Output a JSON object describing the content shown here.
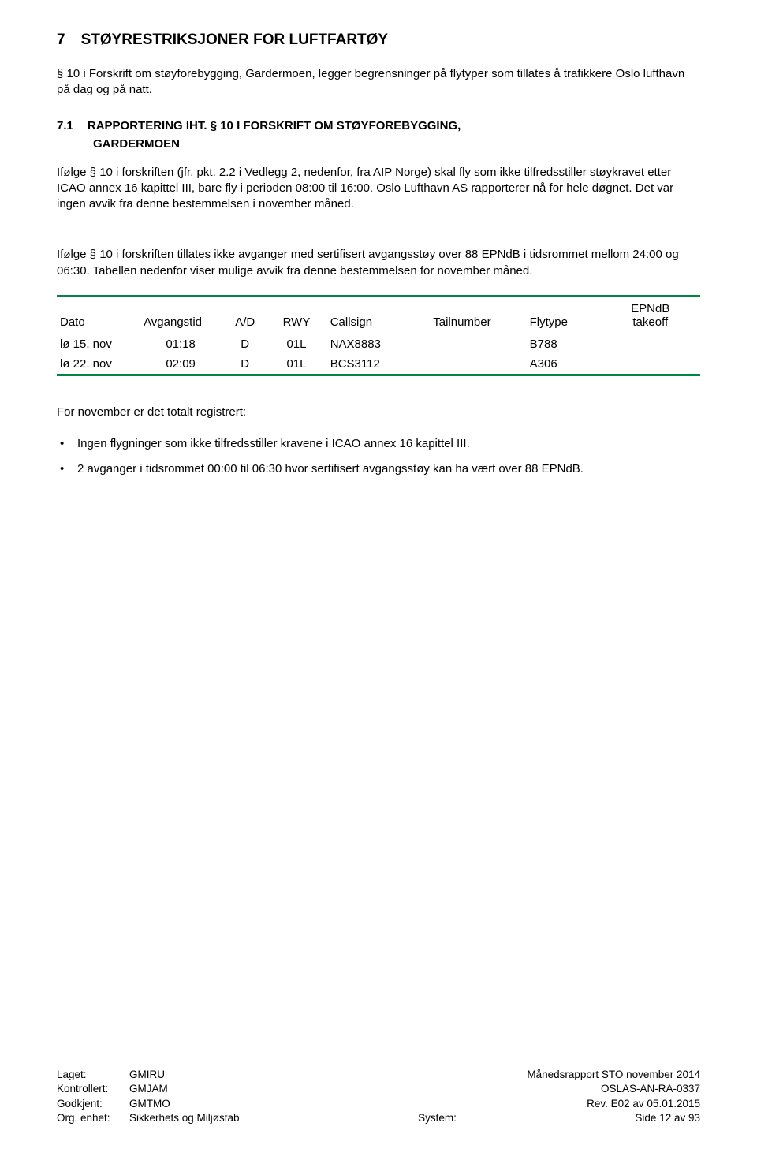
{
  "section7": {
    "num": "7",
    "title": "STØYRESTRIKSJONER FOR LUFTFARTØY",
    "intro": "§ 10 i Forskrift om støyforebygging, Gardermoen, legger begrensninger på flytyper som tillates å trafikkere Oslo lufthavn på dag og på natt."
  },
  "section71": {
    "num": "7.1",
    "title": "RAPPORTERING IHT. § 10 I FORSKRIFT OM STØYFOREBYGGING,",
    "sub": "GARDERMOEN",
    "para1": "Ifølge § 10 i forskriften (jfr. pkt. 2.2 i Vedlegg 2, nedenfor, fra AIP Norge) skal fly som ikke tilfredsstiller støykravet etter ICAO annex 16 kapittel III, bare fly i perioden 08:00 til 16:00. Oslo Lufthavn AS rapporterer nå for hele døgnet. Det var ingen avvik fra denne bestemmelsen i november måned.",
    "para2": "Ifølge § 10 i forskriften tillates ikke avganger med sertifisert avgangsstøy over 88 EPNdB i tidsrommet mellom 24:00 og 06:30. Tabellen nedenfor viser mulige avvik fra denne bestemmelsen for november måned."
  },
  "table": {
    "headers": {
      "dato": "Dato",
      "avgangstid": "Avgangstid",
      "ad": "A/D",
      "rwy": "RWY",
      "callsign": "Callsign",
      "tailnumber": "Tailnumber",
      "flytype": "Flytype",
      "epndb": "EPNdB takeoff"
    },
    "rows": [
      {
        "dato": "lø 15. nov",
        "avgangstid": "01:18",
        "ad": "D",
        "rwy": "01L",
        "callsign": "NAX8883",
        "tailnumber": "",
        "flytype": "B788",
        "epndb": ""
      },
      {
        "dato": "lø 22. nov",
        "avgangstid": "02:09",
        "ad": "D",
        "rwy": "01L",
        "callsign": "BCS3112",
        "tailnumber": "",
        "flytype": "A306",
        "epndb": ""
      }
    ]
  },
  "post": {
    "intro": "For november er det totalt registrert:",
    "bullets": [
      "Ingen flygninger som ikke tilfredsstiller kravene i ICAO annex 16 kapittel III.",
      "2 avganger i tidsrommet 00:00 til 06:30 hvor sertifisert avgangsstøy kan ha vært over 88 EPNdB."
    ]
  },
  "footer": {
    "rows": [
      {
        "label": "Laget:",
        "val": "GMIRU",
        "right": "Månedsrapport STO november 2014"
      },
      {
        "label": "Kontrollert:",
        "val": "GMJAM",
        "right": "OSLAS-AN-RA-0337"
      },
      {
        "label": "Godkjent:",
        "val": "GMTMO",
        "right": "Rev. E02 av 05.01.2015"
      },
      {
        "label": "Org. enhet:",
        "val": "Sikkerhets og Miljøstab",
        "mid": "System:",
        "right": "Side 12 av 93"
      }
    ]
  }
}
